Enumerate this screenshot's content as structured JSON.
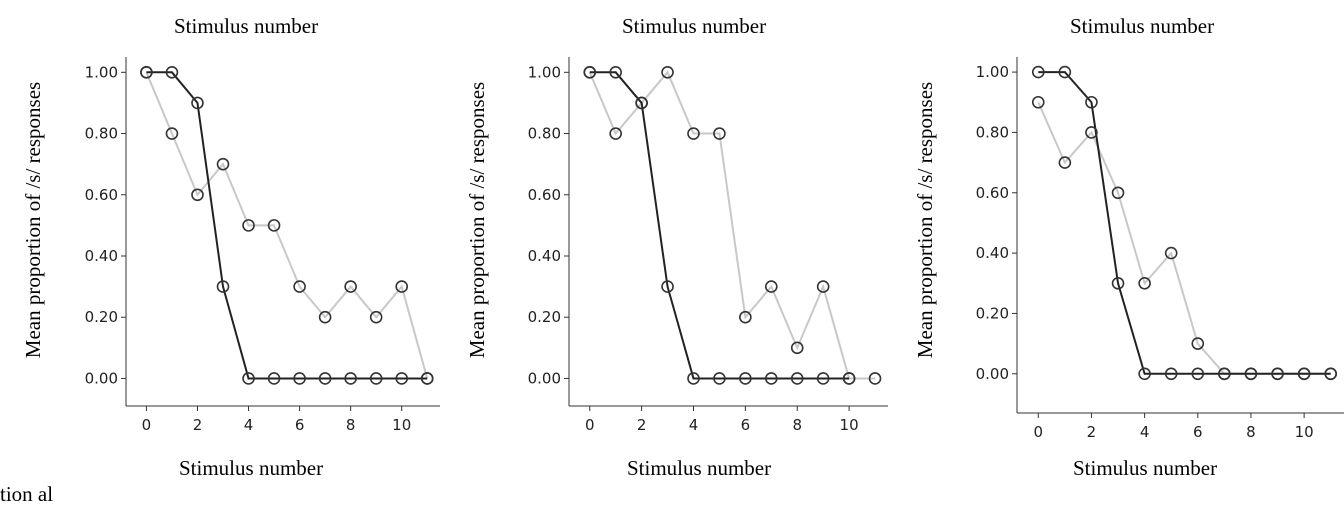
{
  "fragment_text": "tion al",
  "chart_data": [
    {
      "type": "line",
      "top_title": "Stimulus number",
      "bottom_title": "Stimulus number",
      "ylabel": "Mean proportion of /s/ responses",
      "xlim": [
        -0.8,
        11.5
      ],
      "ylim": [
        -0.09,
        1.05
      ],
      "x_ticks": [
        0,
        2,
        4,
        6,
        8,
        10
      ],
      "y_ticks": [
        0.0,
        0.2,
        0.4,
        0.6,
        0.8,
        1.0
      ],
      "y_tick_labels": [
        "0.00",
        "0.20",
        "0.40",
        "0.60",
        "0.80",
        "1.00"
      ],
      "grid": false,
      "series": [
        {
          "color": "#c8c8c8",
          "x": [
            0,
            1,
            2,
            3,
            4,
            5,
            6,
            7,
            8,
            9,
            10,
            11
          ],
          "values": [
            1.0,
            0.8,
            0.6,
            0.7,
            0.5,
            0.5,
            0.3,
            0.2,
            0.3,
            0.2,
            0.3,
            0.0
          ]
        },
        {
          "color": "#222222",
          "x": [
            0,
            1,
            2,
            3,
            4,
            5,
            6,
            7,
            8,
            9,
            10,
            11
          ],
          "values": [
            1.0,
            1.0,
            0.9,
            0.3,
            0.0,
            0.0,
            0.0,
            0.0,
            0.0,
            0.0,
            0.0,
            0.0
          ]
        }
      ]
    },
    {
      "type": "line",
      "top_title": "Stimulus number",
      "bottom_title": "Stimulus number",
      "ylabel": "Mean proportion of /s/ responses",
      "xlim": [
        -0.8,
        11.5
      ],
      "ylim": [
        -0.09,
        1.05
      ],
      "x_ticks": [
        0,
        2,
        4,
        6,
        8,
        10
      ],
      "y_ticks": [
        0.0,
        0.2,
        0.4,
        0.6,
        0.8,
        1.0
      ],
      "y_tick_labels": [
        "0.00",
        "0.20",
        "0.40",
        "0.60",
        "0.80",
        "1.00"
      ],
      "grid": false,
      "series": [
        {
          "color": "#c8c8c8",
          "x": [
            0,
            1,
            2,
            3,
            4,
            5,
            6,
            7,
            8,
            9,
            10,
            11
          ],
          "values": [
            1.0,
            0.8,
            0.9,
            1.0,
            0.8,
            0.8,
            0.2,
            0.3,
            0.1,
            0.3,
            0.0,
            0.0
          ]
        },
        {
          "color": "#222222",
          "x": [
            0,
            1,
            2,
            3,
            4,
            5,
            6,
            7,
            8,
            9,
            10
          ],
          "values": [
            1.0,
            1.0,
            0.9,
            0.3,
            0.0,
            0.0,
            0.0,
            0.0,
            0.0,
            0.0,
            0.0
          ]
        }
      ]
    },
    {
      "type": "line",
      "top_title": "Stimulus number",
      "bottom_title": "Stimulus number",
      "ylabel": "Mean proportion of /s/ responses",
      "xlim": [
        -0.8,
        11.5
      ],
      "ylim": [
        -0.13,
        1.05
      ],
      "x_ticks": [
        0,
        2,
        4,
        6,
        8,
        10
      ],
      "y_ticks": [
        0.0,
        0.2,
        0.4,
        0.6,
        0.8,
        1.0
      ],
      "y_tick_labels": [
        "0.00",
        "0.20",
        "0.40",
        "0.60",
        "0.80",
        "1.00"
      ],
      "grid": false,
      "series": [
        {
          "color": "#c8c8c8",
          "x": [
            0,
            1,
            2,
            3,
            4,
            5,
            6,
            7,
            8,
            9,
            10,
            11
          ],
          "values": [
            0.9,
            0.7,
            0.8,
            0.6,
            0.3,
            0.4,
            0.1,
            0.0,
            0.0,
            0.0,
            0.0,
            0.0
          ]
        },
        {
          "color": "#222222",
          "x": [
            0,
            1,
            2,
            3,
            4,
            5,
            6,
            7,
            8,
            9,
            10,
            11
          ],
          "values": [
            1.0,
            1.0,
            0.9,
            0.3,
            0.0,
            0.0,
            0.0,
            0.0,
            0.0,
            0.0,
            0.0,
            0.0
          ]
        }
      ]
    }
  ]
}
